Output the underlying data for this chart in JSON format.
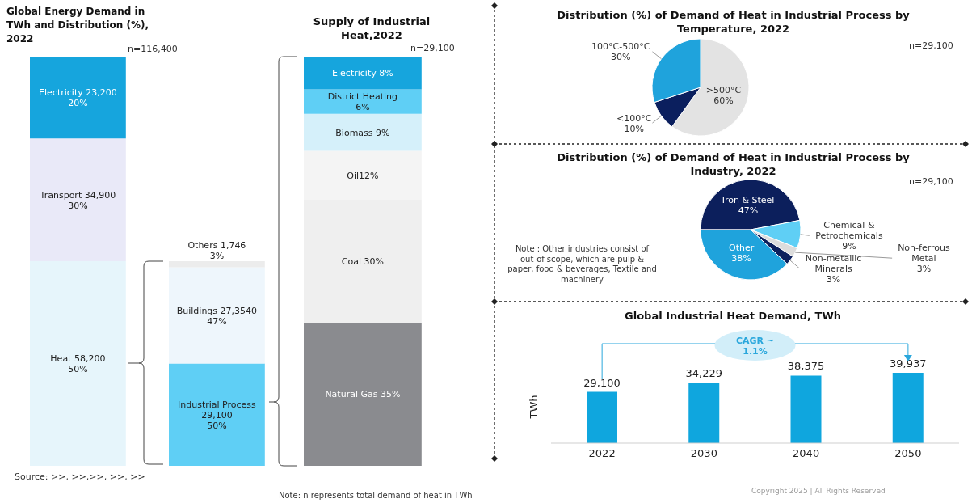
{
  "chart_data": [
    {
      "type": "bar",
      "title": "Global Energy Demand in TWh and Distribution (%), 2022",
      "categories": [
        null
      ],
      "stacked": true,
      "series": [
        {
          "color": "#e6f5fb",
          "values": [
            50
          ],
          "value_labels": [
            "Heat 58,200\n50%"
          ]
        },
        {
          "color": "#e9e9f8",
          "values": [
            30
          ],
          "value_labels": [
            "Transport 34,900\n30%"
          ]
        },
        {
          "color": "#16a5dd",
          "values": [
            20
          ],
          "value_labels": [
            "Electricity 23,200\n20%"
          ]
        }
      ],
      "annotations": [
        "n=116,400",
        "Source: >>, >>,>>, >>, >>"
      ]
    },
    {
      "type": "bar",
      "categories": [
        null
      ],
      "stacked": true,
      "series": [
        {
          "color": "#5fcff5",
          "values": [
            50
          ],
          "value_labels": [
            "Industrial Process\n29,100\n50%"
          ]
        },
        {
          "color": "#eef6fc",
          "values": [
            47
          ],
          "value_labels": [
            "Buildings 27,3540\n47%"
          ]
        },
        {
          "color": "#ececec",
          "values": [
            3
          ],
          "value_labels": [
            "Others 1,746\n3%"
          ]
        }
      ]
    },
    {
      "type": "bar",
      "title": "Supply of Industrial Heat,2022",
      "categories": [
        null
      ],
      "stacked": true,
      "series": [
        {
          "color": "#8a8b8f",
          "values": [
            35
          ],
          "value_labels": [
            "Natural Gas 35%"
          ]
        },
        {
          "color": "#efefef",
          "values": [
            30
          ],
          "value_labels": [
            "Coal 30%"
          ]
        },
        {
          "color": "#f4f4f4",
          "values": [
            12
          ],
          "value_labels": [
            "Oil12%"
          ]
        },
        {
          "color": "#d5f0fa",
          "values": [
            9
          ],
          "value_labels": [
            "Biomass 9%"
          ]
        },
        {
          "color": "#5fcff5",
          "values": [
            6
          ],
          "value_labels": [
            "District Heating\n6%"
          ]
        },
        {
          "color": "#16a5dd",
          "values": [
            8
          ],
          "value_labels": [
            "Electricity 8%"
          ]
        }
      ],
      "annotations": [
        "n=29,100",
        "Note: n represents total demand of heat in TWh"
      ]
    },
    {
      "type": "pie",
      "title": "Distribution (%) of Demand of Heat in Industrial Process by Temperature, 2022",
      "categories": [
        ">500°C",
        "<100°C",
        "100°C-500°C"
      ],
      "values": [
        60,
        10,
        30
      ],
      "value_labels": [
        "60%",
        "10%",
        "30%"
      ],
      "colors": [
        "#e3e3e3",
        "#0b1f5e",
        "#1fa3dc"
      ],
      "annotations": [
        "n=29,100"
      ]
    },
    {
      "type": "pie",
      "title": "Distribution (%) of Demand of Heat in Industrial Process by Industry, 2022",
      "categories": [
        "Iron & Steel",
        "Chemical & Petrochemicals",
        "Non-ferrous Metal",
        "Non-metallic Minerals",
        "Other"
      ],
      "values": [
        47,
        9,
        3,
        3,
        38
      ],
      "value_labels": [
        "47%",
        "9%",
        "3%",
        "3%",
        "38%"
      ],
      "colors": [
        "#0c1f5c",
        "#5fcff5",
        "#dcdcdc",
        "#0c1f5c",
        "#1fa3dc"
      ],
      "annotations": [
        "n=29,100",
        "Note : Other industries consist of out-of-scope, which are pulp & paper, food & beverages, Textile and machinery"
      ]
    },
    {
      "type": "bar",
      "title": "Global Industrial Heat Demand, TWh",
      "ylabel": "TWh",
      "categories": [
        "2022",
        "2030",
        "2040",
        "2050"
      ],
      "values": [
        29100,
        34229,
        38375,
        39937
      ],
      "value_labels": [
        "29,100",
        "34,229",
        "38,375",
        "39,937"
      ],
      "color": "#0fa6de",
      "annotations": [
        "CAGR ~\n1.1%",
        "Copyright 2025 | All Rights Reserved"
      ]
    }
  ]
}
